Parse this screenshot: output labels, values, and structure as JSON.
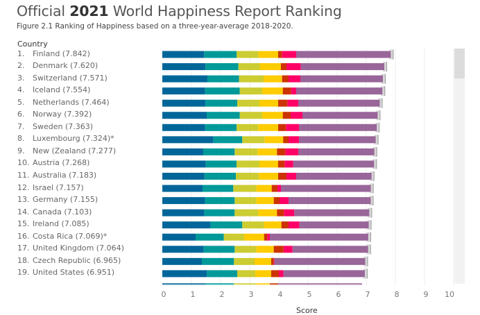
{
  "header": {
    "title_pre": "Official ",
    "title_bold": "2021",
    "title_post": " World Happiness Report Ranking",
    "subtitle": "Figure 2.1 Ranking of Happiness based on a three-year-average 2018-2020.",
    "column_header": "Country"
  },
  "colors": {
    "segments": [
      "#006699",
      "#009999",
      "#cccc33",
      "#ffcc00",
      "#cc3300",
      "#ff0066",
      "#996699"
    ],
    "whisker_fill": "#d6d6d6",
    "whisker_line": "#999999",
    "grid": "#eeeeee"
  },
  "chart_data": {
    "type": "bar",
    "orientation": "horizontal",
    "stacked": true,
    "title": "Official 2021 World Happiness Report Ranking",
    "xlabel": "Score",
    "ylabel": "Country",
    "xlim": [
      0,
      10
    ],
    "xticks": [
      "0",
      "1",
      "2",
      "3",
      "4",
      "5",
      "6",
      "7",
      "8",
      "9",
      "10"
    ],
    "grid": true,
    "rows": [
      {
        "rank": "1.",
        "label": "Finland (7.842)",
        "score": 7.842,
        "bounds": [
          1.436,
          2.548,
          3.302,
          3.976,
          4.112,
          4.595,
          7.842
        ]
      },
      {
        "rank": "2.",
        "label": "Denmark (7.620)",
        "score": 7.62,
        "bounds": [
          1.483,
          2.612,
          3.357,
          4.071,
          4.262,
          4.755,
          7.62
        ]
      },
      {
        "rank": "3.",
        "label": "Switzerland (7.571)",
        "score": 7.571,
        "bounds": [
          1.548,
          2.636,
          3.476,
          4.112,
          4.333,
          4.738,
          7.571
        ]
      },
      {
        "rank": "4.",
        "label": "Iceland (7.554)",
        "score": 7.554,
        "bounds": [
          1.469,
          2.66,
          3.429,
          4.136,
          4.421,
          4.595,
          7.554
        ]
      },
      {
        "rank": "5.",
        "label": "Netherlands (7.464)",
        "score": 7.464,
        "bounds": [
          1.483,
          2.571,
          3.333,
          3.976,
          4.293,
          4.667,
          7.464
        ]
      },
      {
        "rank": "6.",
        "label": "Norway (7.392)",
        "score": 7.392,
        "bounds": [
          1.524,
          2.66,
          3.429,
          4.136,
          4.405,
          4.81,
          7.392
        ]
      },
      {
        "rank": "7.",
        "label": "Sweden (7.363)",
        "score": 7.363,
        "bounds": [
          1.469,
          2.548,
          3.293,
          3.976,
          4.245,
          4.69,
          7.363
        ]
      },
      {
        "rank": "8.",
        "label": "Luxembourg (7.324)*",
        "score": 7.324,
        "bounds": [
          1.755,
          2.745,
          3.517,
          4.15,
          4.333,
          4.69,
          7.324
        ]
      },
      {
        "rank": "9.",
        "label": "New (Zealand (7.277)",
        "score": 7.277,
        "bounds": [
          1.405,
          2.484,
          3.27,
          3.936,
          4.222,
          4.667,
          7.277
        ]
      },
      {
        "rank": "10.",
        "label": "Austria (7.268)",
        "score": 7.268,
        "bounds": [
          1.493,
          2.548,
          3.333,
          3.976,
          4.198,
          4.493,
          7.268
        ]
      },
      {
        "rank": "11.",
        "label": "Australia (7.183)",
        "score": 7.183,
        "bounds": [
          1.445,
          2.524,
          3.317,
          3.976,
          4.262,
          4.595,
          7.183
        ]
      },
      {
        "rank": "12.",
        "label": "Israel (7.157)",
        "score": 7.157,
        "bounds": [
          1.381,
          2.436,
          3.231,
          3.755,
          3.952,
          4.071,
          7.157
        ]
      },
      {
        "rank": "13.",
        "label": "Germany (7.155)",
        "score": 7.155,
        "bounds": [
          1.469,
          2.484,
          3.231,
          3.826,
          4.024,
          4.333,
          7.155
        ]
      },
      {
        "rank": "14.",
        "label": "Canada (7.103)",
        "score": 7.103,
        "bounds": [
          1.445,
          2.484,
          3.293,
          3.936,
          4.174,
          4.531,
          7.103
        ]
      },
      {
        "rank": "15.",
        "label": "Ireland (7.085)",
        "score": 7.085,
        "bounds": [
          1.643,
          2.745,
          3.493,
          4.088,
          4.333,
          4.707,
          7.085
        ]
      },
      {
        "rank": "16.",
        "label": "Costa Rica (7.069)*",
        "score": 7.069,
        "bounds": [
          1.143,
          2.112,
          2.81,
          3.493,
          3.603,
          3.69,
          7.069
        ]
      },
      {
        "rank": "17.",
        "label": "United Kingdom (7.064)",
        "score": 7.064,
        "bounds": [
          1.421,
          2.484,
          3.231,
          3.826,
          4.16,
          4.469,
          7.064
        ]
      },
      {
        "rank": "18.",
        "label": "Czech Republic (6.965)",
        "score": 6.965,
        "bounds": [
          1.357,
          2.46,
          3.167,
          3.738,
          3.826,
          3.85,
          6.965
        ]
      },
      {
        "rank": "19.",
        "label": "United States (6.951)",
        "score": 6.951,
        "bounds": [
          1.532,
          2.571,
          3.19,
          3.738,
          4.0,
          4.16,
          6.951
        ]
      }
    ],
    "partial_row": {
      "bounds": [
        1.476,
        2.452,
        3.214,
        3.69,
        3.976,
        3.976,
        6.857
      ]
    }
  }
}
